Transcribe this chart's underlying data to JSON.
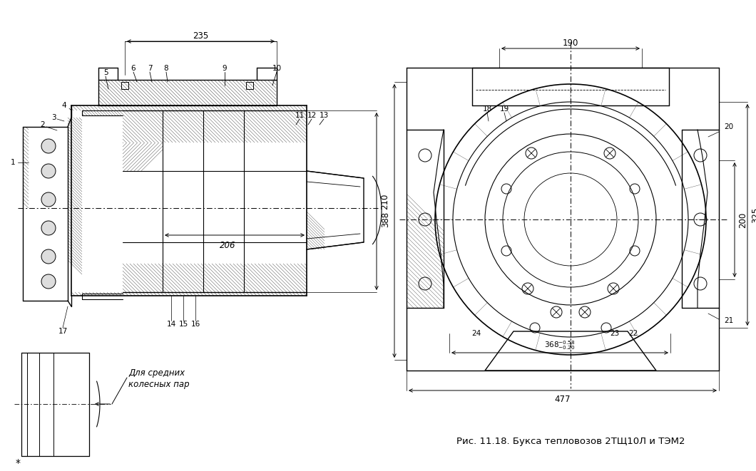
{
  "title": "Рис. 11.18. Букса тепловозов 2ТЩ10Л и ТЭМ2",
  "note_text": "Для средних\nколесных пар",
  "dim_206": "206",
  "dim_235": "235",
  "dim_210": "210",
  "dim_190": "190",
  "dim_388": "388",
  "dim_477": "477",
  "dim_200": "200",
  "dim_325": "325",
  "dim_368": "368",
  "dim_368_tol": "$^{-0.58}_{-0.20}$",
  "bg_color": "#ffffff",
  "lc": "#000000",
  "fig_w": 10.6,
  "fig_h": 6.61,
  "dpi": 100
}
